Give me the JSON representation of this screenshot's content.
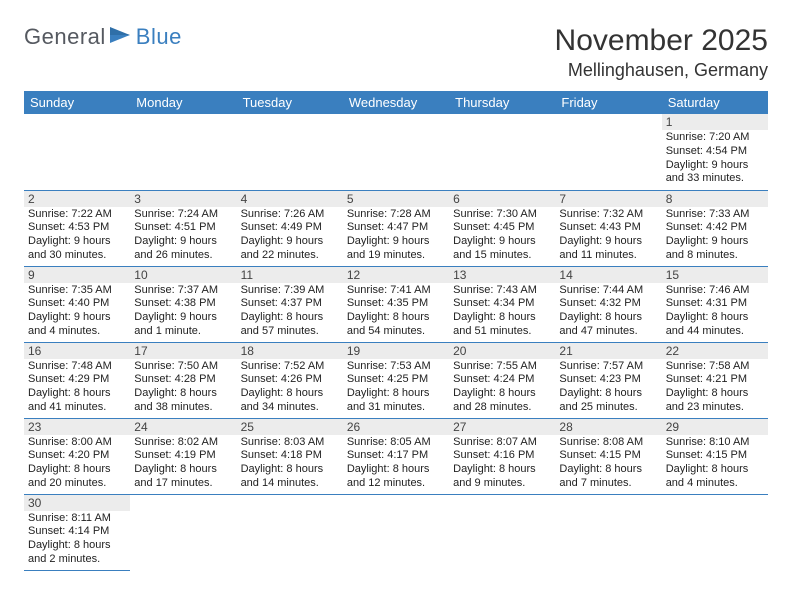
{
  "logo": {
    "text1": "General",
    "text2": "Blue"
  },
  "title": "November 2025",
  "location": "Mellinghausen, Germany",
  "colors": {
    "header_bg": "#3a7fbf",
    "header_fg": "#ffffff",
    "daynum_bg": "#ececec",
    "cell_border": "#3a7fbf",
    "text": "#222222",
    "logo_gray": "#555960",
    "logo_blue": "#3a7fbf"
  },
  "days_of_week": [
    "Sunday",
    "Monday",
    "Tuesday",
    "Wednesday",
    "Thursday",
    "Friday",
    "Saturday"
  ],
  "weeks": [
    [
      null,
      null,
      null,
      null,
      null,
      null,
      {
        "n": "1",
        "sr": "Sunrise: 7:20 AM",
        "ss": "Sunset: 4:54 PM",
        "d1": "Daylight: 9 hours",
        "d2": "and 33 minutes."
      }
    ],
    [
      {
        "n": "2",
        "sr": "Sunrise: 7:22 AM",
        "ss": "Sunset: 4:53 PM",
        "d1": "Daylight: 9 hours",
        "d2": "and 30 minutes."
      },
      {
        "n": "3",
        "sr": "Sunrise: 7:24 AM",
        "ss": "Sunset: 4:51 PM",
        "d1": "Daylight: 9 hours",
        "d2": "and 26 minutes."
      },
      {
        "n": "4",
        "sr": "Sunrise: 7:26 AM",
        "ss": "Sunset: 4:49 PM",
        "d1": "Daylight: 9 hours",
        "d2": "and 22 minutes."
      },
      {
        "n": "5",
        "sr": "Sunrise: 7:28 AM",
        "ss": "Sunset: 4:47 PM",
        "d1": "Daylight: 9 hours",
        "d2": "and 19 minutes."
      },
      {
        "n": "6",
        "sr": "Sunrise: 7:30 AM",
        "ss": "Sunset: 4:45 PM",
        "d1": "Daylight: 9 hours",
        "d2": "and 15 minutes."
      },
      {
        "n": "7",
        "sr": "Sunrise: 7:32 AM",
        "ss": "Sunset: 4:43 PM",
        "d1": "Daylight: 9 hours",
        "d2": "and 11 minutes."
      },
      {
        "n": "8",
        "sr": "Sunrise: 7:33 AM",
        "ss": "Sunset: 4:42 PM",
        "d1": "Daylight: 9 hours",
        "d2": "and 8 minutes."
      }
    ],
    [
      {
        "n": "9",
        "sr": "Sunrise: 7:35 AM",
        "ss": "Sunset: 4:40 PM",
        "d1": "Daylight: 9 hours",
        "d2": "and 4 minutes."
      },
      {
        "n": "10",
        "sr": "Sunrise: 7:37 AM",
        "ss": "Sunset: 4:38 PM",
        "d1": "Daylight: 9 hours",
        "d2": "and 1 minute."
      },
      {
        "n": "11",
        "sr": "Sunrise: 7:39 AM",
        "ss": "Sunset: 4:37 PM",
        "d1": "Daylight: 8 hours",
        "d2": "and 57 minutes."
      },
      {
        "n": "12",
        "sr": "Sunrise: 7:41 AM",
        "ss": "Sunset: 4:35 PM",
        "d1": "Daylight: 8 hours",
        "d2": "and 54 minutes."
      },
      {
        "n": "13",
        "sr": "Sunrise: 7:43 AM",
        "ss": "Sunset: 4:34 PM",
        "d1": "Daylight: 8 hours",
        "d2": "and 51 minutes."
      },
      {
        "n": "14",
        "sr": "Sunrise: 7:44 AM",
        "ss": "Sunset: 4:32 PM",
        "d1": "Daylight: 8 hours",
        "d2": "and 47 minutes."
      },
      {
        "n": "15",
        "sr": "Sunrise: 7:46 AM",
        "ss": "Sunset: 4:31 PM",
        "d1": "Daylight: 8 hours",
        "d2": "and 44 minutes."
      }
    ],
    [
      {
        "n": "16",
        "sr": "Sunrise: 7:48 AM",
        "ss": "Sunset: 4:29 PM",
        "d1": "Daylight: 8 hours",
        "d2": "and 41 minutes."
      },
      {
        "n": "17",
        "sr": "Sunrise: 7:50 AM",
        "ss": "Sunset: 4:28 PM",
        "d1": "Daylight: 8 hours",
        "d2": "and 38 minutes."
      },
      {
        "n": "18",
        "sr": "Sunrise: 7:52 AM",
        "ss": "Sunset: 4:26 PM",
        "d1": "Daylight: 8 hours",
        "d2": "and 34 minutes."
      },
      {
        "n": "19",
        "sr": "Sunrise: 7:53 AM",
        "ss": "Sunset: 4:25 PM",
        "d1": "Daylight: 8 hours",
        "d2": "and 31 minutes."
      },
      {
        "n": "20",
        "sr": "Sunrise: 7:55 AM",
        "ss": "Sunset: 4:24 PM",
        "d1": "Daylight: 8 hours",
        "d2": "and 28 minutes."
      },
      {
        "n": "21",
        "sr": "Sunrise: 7:57 AM",
        "ss": "Sunset: 4:23 PM",
        "d1": "Daylight: 8 hours",
        "d2": "and 25 minutes."
      },
      {
        "n": "22",
        "sr": "Sunrise: 7:58 AM",
        "ss": "Sunset: 4:21 PM",
        "d1": "Daylight: 8 hours",
        "d2": "and 23 minutes."
      }
    ],
    [
      {
        "n": "23",
        "sr": "Sunrise: 8:00 AM",
        "ss": "Sunset: 4:20 PM",
        "d1": "Daylight: 8 hours",
        "d2": "and 20 minutes."
      },
      {
        "n": "24",
        "sr": "Sunrise: 8:02 AM",
        "ss": "Sunset: 4:19 PM",
        "d1": "Daylight: 8 hours",
        "d2": "and 17 minutes."
      },
      {
        "n": "25",
        "sr": "Sunrise: 8:03 AM",
        "ss": "Sunset: 4:18 PM",
        "d1": "Daylight: 8 hours",
        "d2": "and 14 minutes."
      },
      {
        "n": "26",
        "sr": "Sunrise: 8:05 AM",
        "ss": "Sunset: 4:17 PM",
        "d1": "Daylight: 8 hours",
        "d2": "and 12 minutes."
      },
      {
        "n": "27",
        "sr": "Sunrise: 8:07 AM",
        "ss": "Sunset: 4:16 PM",
        "d1": "Daylight: 8 hours",
        "d2": "and 9 minutes."
      },
      {
        "n": "28",
        "sr": "Sunrise: 8:08 AM",
        "ss": "Sunset: 4:15 PM",
        "d1": "Daylight: 8 hours",
        "d2": "and 7 minutes."
      },
      {
        "n": "29",
        "sr": "Sunrise: 8:10 AM",
        "ss": "Sunset: 4:15 PM",
        "d1": "Daylight: 8 hours",
        "d2": "and 4 minutes."
      }
    ],
    [
      {
        "n": "30",
        "sr": "Sunrise: 8:11 AM",
        "ss": "Sunset: 4:14 PM",
        "d1": "Daylight: 8 hours",
        "d2": "and 2 minutes."
      },
      null,
      null,
      null,
      null,
      null,
      null
    ]
  ]
}
